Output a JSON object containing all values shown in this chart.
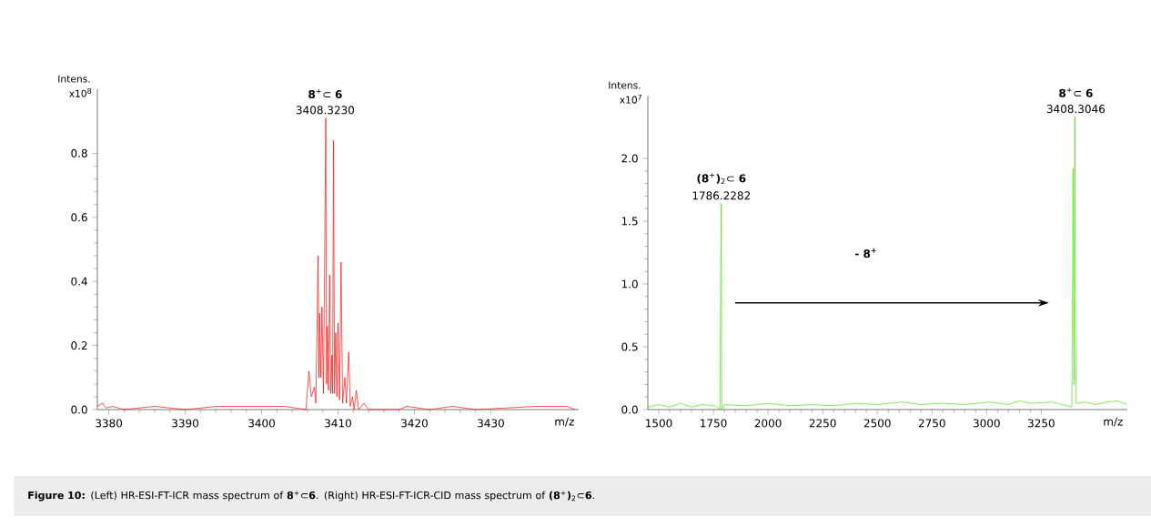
{
  "chart_data": [
    {
      "type": "line",
      "ylabel": "Intens.",
      "xlabel": "m/z",
      "xlim": [
        3378.5,
        3441.5
      ],
      "ylim": [
        0,
        1.0
      ],
      "xticks": [
        3380,
        3390,
        3400,
        3410,
        3420,
        3430
      ],
      "yticks": [
        {
          "value": 0,
          "label": "0.0"
        },
        0.2,
        0.4,
        0.6,
        0.8
      ],
      "series": [
        {
          "color": "#ff0000",
          "x": [
            3378.5,
            3379.2,
            3379.6,
            3380.5,
            3382,
            3386,
            3390,
            3394.2,
            3400,
            3403,
            3405.8,
            3406.2,
            3406.5,
            3406.9,
            3407.1,
            3407.4,
            3407.5,
            3407.6,
            3407.75,
            3407.9,
            3408.1,
            3408.4,
            3408.5,
            3408.6,
            3408.75,
            3408.9,
            3409.05,
            3409.2,
            3409.3,
            3409.4,
            3409.55,
            3409.7,
            3409.85,
            3410.0,
            3410.2,
            3410.4,
            3410.6,
            3410.9,
            3411.1,
            3411.4,
            3411.6,
            3411.9,
            3412.1,
            3412.4,
            3412.7,
            3413.4,
            3414,
            3418,
            3419,
            3422,
            3425,
            3428,
            3436,
            3440,
            3441
          ],
          "values": [
            0.01,
            0.02,
            0.005,
            0.01,
            0.0,
            0.01,
            0.0,
            0.01,
            0.01,
            0.01,
            0.0,
            0.12,
            0.04,
            0.07,
            0.02,
            0.48,
            0.1,
            0.3,
            0.1,
            0.32,
            0.05,
            0.91,
            0.08,
            0.26,
            0.06,
            0.42,
            0.05,
            0.17,
            0.05,
            0.84,
            0.05,
            0.24,
            0.04,
            0.27,
            0.03,
            0.46,
            0.02,
            0.1,
            0.02,
            0.18,
            0.01,
            0.04,
            0.0,
            0.06,
            0.0,
            0.02,
            0.0,
            0.0,
            0.01,
            0.0,
            0.01,
            0.0,
            0.01,
            0.01,
            0.0
          ]
        }
      ],
      "annotations": [
        "x10$^{8}$",
        {
          "text": "3408.3230",
          "x": 3408.323,
          "y": 0.91
        },
        {
          "text": "**8**$^{+}$⊂ **6**",
          "x": 3408.323,
          "y": 0.91
        },
        "**Figure 10:** (Left) HR-ESI-FT-ICR mass spectrum of **8**$^{+}$⊂**6**. (Right) HR-ESI-FT-ICR-CID mass spectrum of **(8**$^{+}$**)**$_{2}$⊂**6**."
      ]
    },
    {
      "type": "line",
      "ylabel": "Intens.",
      "xlabel": "m/z",
      "xlim": [
        1450,
        3644
      ],
      "ylim": [
        0,
        2.5
      ],
      "xticks": [
        1500,
        1750,
        2000,
        2250,
        2500,
        2750,
        3000,
        3250
      ],
      "yticks": [
        {
          "value": 0,
          "label": "0.0"
        },
        0.5,
        {
          "value": 1,
          "label": "1.0"
        },
        1.5,
        {
          "value": 2,
          "label": "2.0"
        }
      ],
      "series": [
        {
          "color": "#44e000",
          "x": [
            1450,
            1500,
            1550,
            1600,
            1650,
            1700,
            1760,
            1780,
            1784,
            1786,
            1788,
            1800,
            1900,
            2000,
            2100,
            2200,
            2300,
            2400,
            2500,
            2615,
            2700,
            2800,
            2900,
            3015,
            3100,
            3150,
            3200,
            3300,
            3390,
            3396,
            3400,
            3404,
            3406,
            3410,
            3450,
            3500,
            3550,
            3600,
            3640
          ],
          "values": [
            0.02,
            0.04,
            0.02,
            0.05,
            0.02,
            0.04,
            0.03,
            0.0,
            1.24,
            1.64,
            0.0,
            0.04,
            0.03,
            0.05,
            0.03,
            0.04,
            0.03,
            0.05,
            0.04,
            0.06,
            0.04,
            0.05,
            0.04,
            0.06,
            0.04,
            0.07,
            0.05,
            0.06,
            0.02,
            1.92,
            0.2,
            2.33,
            0.76,
            0.05,
            0.06,
            0.04,
            0.06,
            0.07,
            0.04
          ]
        }
      ],
      "annotations": [
        "x10$^{7}$",
        {
          "text": "1786.2282",
          "x": 1786.2282,
          "y": 1.64
        },
        {
          "text": "**(8**$^{+}$**)**$_{2}$⊂ **6**",
          "x": 1786.2282,
          "y": 1.64
        },
        {
          "text": "3408.3046",
          "x": 3408.3046,
          "y": 2.33
        },
        {
          "text": "**8**$^{+}$⊂ **6**",
          "x": 3408.3046,
          "y": 2.33
        },
        "- **8**$^{+}$"
      ]
    }
  ]
}
